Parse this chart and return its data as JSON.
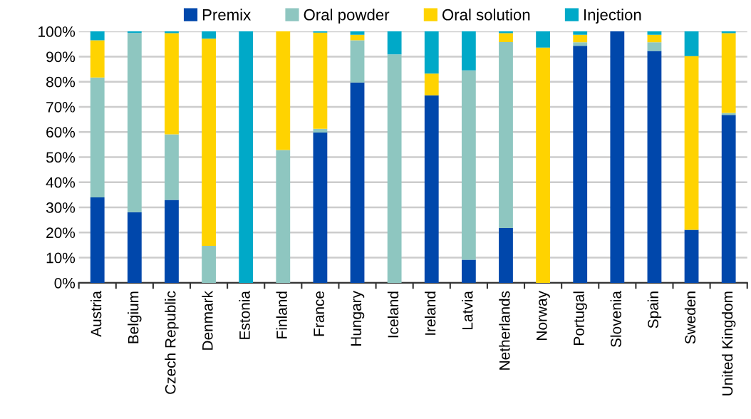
{
  "chart_data": {
    "type": "bar",
    "stacked": true,
    "categories": [
      "Austria",
      "Belgium",
      "Czech Republic",
      "Denmark",
      "Estonia",
      "Finland",
      "France",
      "Hungary",
      "Iceland",
      "Ireland",
      "Latvia",
      "Netherlands",
      "Norway",
      "Portugal",
      "Slovenia",
      "Spain",
      "Sweden",
      "United Kingdom"
    ],
    "series": [
      {
        "name": "Premix",
        "color": "#0047ab",
        "values": [
          34.0,
          28.1,
          33.0,
          0,
          0,
          0,
          59.8,
          79.7,
          0,
          74.6,
          9.2,
          21.8,
          0,
          94.3,
          100,
          92.2,
          21.1,
          66.8
        ]
      },
      {
        "name": "Oral powder",
        "color": "#8ec6c0",
        "values": [
          47.7,
          71.3,
          26.1,
          14.7,
          0,
          52.8,
          1.5,
          16.8,
          90.9,
          0,
          75.3,
          74.0,
          0,
          1.4,
          0,
          3.5,
          0,
          0.8
        ]
      },
      {
        "name": "Oral solution",
        "color": "#ffd300",
        "values": [
          14.8,
          0,
          40.2,
          82.4,
          0,
          47.2,
          38.2,
          2.2,
          0,
          8.6,
          0,
          3.5,
          93.6,
          3.0,
          0,
          3.0,
          69.1,
          31.7
        ]
      },
      {
        "name": "Injection",
        "color": "#00a9c8",
        "values": [
          3.5,
          0.6,
          0.7,
          2.9,
          100,
          0,
          0.5,
          1.3,
          9.1,
          16.8,
          15.5,
          0.7,
          6.4,
          1.3,
          0,
          1.3,
          9.8,
          0.7
        ]
      }
    ],
    "ylim": [
      0,
      100
    ],
    "yticks": [
      {
        "value": 0,
        "label": "0%"
      },
      {
        "value": 10,
        "label": "10%"
      },
      {
        "value": 20,
        "label": "20%"
      },
      {
        "value": 30,
        "label": "30%"
      },
      {
        "value": 40,
        "label": "40%"
      },
      {
        "value": 50,
        "label": "50%"
      },
      {
        "value": 60,
        "label": "60%"
      },
      {
        "value": 70,
        "label": "70%"
      },
      {
        "value": 80,
        "label": "80%"
      },
      {
        "value": 90,
        "label": "90%"
      },
      {
        "value": 100,
        "label": "100%"
      }
    ],
    "grid": "y",
    "legend": "top"
  }
}
